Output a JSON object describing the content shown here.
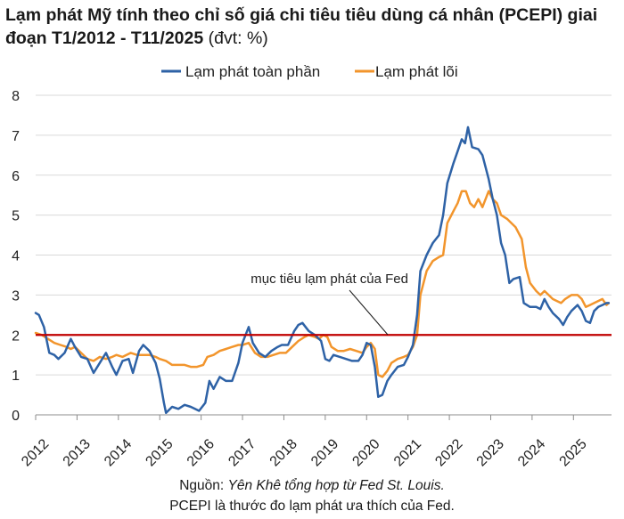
{
  "title": {
    "main": "Lạm phát Mỹ tính theo chỉ số giá chi tiêu tiêu dùng cá nhân (PCEPI) giai đoạn T1/2012 - T11/2025",
    "unit": " (đvt: %)"
  },
  "legend": [
    {
      "label": "Lạm phát toàn phần",
      "color": "#2e62a6"
    },
    {
      "label": "Lạm phát lõi",
      "color": "#f2952c"
    }
  ],
  "annotation": "mục tiêu lạm phát của Fed",
  "footer": {
    "source_prefix": "Nguồn: ",
    "source_italic": "Yên Khê tổng hợp từ Fed St. Louis.",
    "note": "PCEPI là thước đo lạm phát ưa thích của Fed."
  },
  "chart_data": {
    "type": "line",
    "title": "Lạm phát Mỹ tính theo chỉ số giá chi tiêu tiêu dùng cá nhân (PCEPI) giai đoạn T1/2012 - T11/2025",
    "xlabel": "",
    "ylabel": "%",
    "ylim": [
      0,
      8
    ],
    "yticks": [
      "0",
      "1",
      "2",
      "3",
      "4",
      "5",
      "6",
      "7",
      "8"
    ],
    "xticks": [
      "2012",
      "2013",
      "2014",
      "2015",
      "2016",
      "2017",
      "2018",
      "2019",
      "2020",
      "2021",
      "2022",
      "2023",
      "2024",
      "2025"
    ],
    "reference_line": {
      "y": 2,
      "label": "mục tiêu lạm phát của Fed",
      "color": "#c00000"
    },
    "series": [
      {
        "name": "Lạm phát toàn phần",
        "color": "#2e62a6",
        "points": [
          [
            2012.0,
            2.55
          ],
          [
            2012.08,
            2.5
          ],
          [
            2012.2,
            2.2
          ],
          [
            2012.33,
            1.55
          ],
          [
            2012.45,
            1.5
          ],
          [
            2012.55,
            1.4
          ],
          [
            2012.7,
            1.55
          ],
          [
            2012.85,
            1.9
          ],
          [
            2012.95,
            1.7
          ],
          [
            2013.1,
            1.45
          ],
          [
            2013.25,
            1.4
          ],
          [
            2013.4,
            1.05
          ],
          [
            2013.55,
            1.3
          ],
          [
            2013.7,
            1.55
          ],
          [
            2013.85,
            1.2
          ],
          [
            2013.95,
            1.0
          ],
          [
            2014.1,
            1.35
          ],
          [
            2014.25,
            1.4
          ],
          [
            2014.35,
            1.05
          ],
          [
            2014.5,
            1.6
          ],
          [
            2014.6,
            1.75
          ],
          [
            2014.75,
            1.6
          ],
          [
            2014.9,
            1.3
          ],
          [
            2015.0,
            0.9
          ],
          [
            2015.1,
            0.3
          ],
          [
            2015.15,
            0.05
          ],
          [
            2015.3,
            0.2
          ],
          [
            2015.45,
            0.15
          ],
          [
            2015.6,
            0.25
          ],
          [
            2015.75,
            0.2
          ],
          [
            2015.85,
            0.15
          ],
          [
            2015.95,
            0.1
          ],
          [
            2016.1,
            0.3
          ],
          [
            2016.2,
            0.85
          ],
          [
            2016.3,
            0.65
          ],
          [
            2016.45,
            0.95
          ],
          [
            2016.6,
            0.85
          ],
          [
            2016.75,
            0.85
          ],
          [
            2016.9,
            1.3
          ],
          [
            2017.0,
            1.8
          ],
          [
            2017.15,
            2.2
          ],
          [
            2017.25,
            1.8
          ],
          [
            2017.4,
            1.55
          ],
          [
            2017.55,
            1.45
          ],
          [
            2017.7,
            1.6
          ],
          [
            2017.85,
            1.7
          ],
          [
            2017.95,
            1.75
          ],
          [
            2018.1,
            1.75
          ],
          [
            2018.25,
            2.1
          ],
          [
            2018.35,
            2.25
          ],
          [
            2018.45,
            2.3
          ],
          [
            2018.6,
            2.1
          ],
          [
            2018.75,
            2.0
          ],
          [
            2018.9,
            1.85
          ],
          [
            2019.0,
            1.4
          ],
          [
            2019.1,
            1.35
          ],
          [
            2019.2,
            1.5
          ],
          [
            2019.35,
            1.45
          ],
          [
            2019.5,
            1.4
          ],
          [
            2019.65,
            1.35
          ],
          [
            2019.8,
            1.35
          ],
          [
            2019.9,
            1.5
          ],
          [
            2020.0,
            1.8
          ],
          [
            2020.1,
            1.75
          ],
          [
            2020.2,
            1.2
          ],
          [
            2020.28,
            0.45
          ],
          [
            2020.38,
            0.5
          ],
          [
            2020.5,
            0.85
          ],
          [
            2020.6,
            1.0
          ],
          [
            2020.75,
            1.2
          ],
          [
            2020.9,
            1.25
          ],
          [
            2021.0,
            1.45
          ],
          [
            2021.12,
            1.75
          ],
          [
            2021.22,
            2.5
          ],
          [
            2021.3,
            3.6
          ],
          [
            2021.45,
            4.0
          ],
          [
            2021.6,
            4.3
          ],
          [
            2021.75,
            4.5
          ],
          [
            2021.85,
            5.0
          ],
          [
            2021.95,
            5.8
          ],
          [
            2022.1,
            6.3
          ],
          [
            2022.2,
            6.6
          ],
          [
            2022.3,
            6.9
          ],
          [
            2022.38,
            6.8
          ],
          [
            2022.45,
            7.2
          ],
          [
            2022.55,
            6.7
          ],
          [
            2022.7,
            6.65
          ],
          [
            2022.8,
            6.5
          ],
          [
            2022.95,
            5.9
          ],
          [
            2023.05,
            5.4
          ],
          [
            2023.15,
            5.0
          ],
          [
            2023.25,
            4.3
          ],
          [
            2023.35,
            4.0
          ],
          [
            2023.45,
            3.3
          ],
          [
            2023.55,
            3.4
          ],
          [
            2023.7,
            3.45
          ],
          [
            2023.8,
            2.8
          ],
          [
            2023.95,
            2.7
          ],
          [
            2024.1,
            2.7
          ],
          [
            2024.2,
            2.65
          ],
          [
            2024.3,
            2.9
          ],
          [
            2024.4,
            2.7
          ],
          [
            2024.5,
            2.55
          ],
          [
            2024.65,
            2.4
          ],
          [
            2024.75,
            2.25
          ],
          [
            2024.85,
            2.45
          ],
          [
            2024.95,
            2.6
          ],
          [
            2025.1,
            2.75
          ],
          [
            2025.2,
            2.6
          ],
          [
            2025.3,
            2.35
          ],
          [
            2025.4,
            2.3
          ],
          [
            2025.5,
            2.6
          ],
          [
            2025.6,
            2.7
          ],
          [
            2025.7,
            2.75
          ],
          [
            2025.8,
            2.8
          ],
          [
            2025.85,
            2.8
          ]
        ]
      },
      {
        "name": "Lạm phát lõi",
        "color": "#f2952c",
        "points": [
          [
            2012.0,
            2.05
          ],
          [
            2012.15,
            2.0
          ],
          [
            2012.3,
            1.9
          ],
          [
            2012.45,
            1.8
          ],
          [
            2012.6,
            1.75
          ],
          [
            2012.75,
            1.7
          ],
          [
            2012.85,
            1.65
          ],
          [
            2012.95,
            1.7
          ],
          [
            2013.1,
            1.55
          ],
          [
            2013.25,
            1.4
          ],
          [
            2013.4,
            1.35
          ],
          [
            2013.55,
            1.45
          ],
          [
            2013.7,
            1.4
          ],
          [
            2013.85,
            1.45
          ],
          [
            2013.95,
            1.5
          ],
          [
            2014.1,
            1.45
          ],
          [
            2014.3,
            1.55
          ],
          [
            2014.45,
            1.5
          ],
          [
            2014.6,
            1.5
          ],
          [
            2014.75,
            1.5
          ],
          [
            2014.9,
            1.45
          ],
          [
            2015.0,
            1.4
          ],
          [
            2015.15,
            1.35
          ],
          [
            2015.3,
            1.25
          ],
          [
            2015.45,
            1.25
          ],
          [
            2015.6,
            1.25
          ],
          [
            2015.75,
            1.2
          ],
          [
            2015.9,
            1.2
          ],
          [
            2016.05,
            1.25
          ],
          [
            2016.15,
            1.45
          ],
          [
            2016.3,
            1.5
          ],
          [
            2016.45,
            1.6
          ],
          [
            2016.6,
            1.65
          ],
          [
            2016.75,
            1.7
          ],
          [
            2016.9,
            1.75
          ],
          [
            2017.0,
            1.75
          ],
          [
            2017.15,
            1.8
          ],
          [
            2017.3,
            1.55
          ],
          [
            2017.45,
            1.45
          ],
          [
            2017.6,
            1.45
          ],
          [
            2017.75,
            1.5
          ],
          [
            2017.9,
            1.55
          ],
          [
            2018.05,
            1.55
          ],
          [
            2018.2,
            1.7
          ],
          [
            2018.35,
            1.85
          ],
          [
            2018.5,
            1.95
          ],
          [
            2018.6,
            2.0
          ],
          [
            2018.75,
            1.95
          ],
          [
            2018.85,
            1.9
          ],
          [
            2018.95,
            2.0
          ],
          [
            2019.05,
            1.95
          ],
          [
            2019.15,
            1.7
          ],
          [
            2019.3,
            1.6
          ],
          [
            2019.45,
            1.6
          ],
          [
            2019.6,
            1.65
          ],
          [
            2019.75,
            1.6
          ],
          [
            2019.9,
            1.55
          ],
          [
            2020.0,
            1.7
          ],
          [
            2020.1,
            1.8
          ],
          [
            2020.2,
            1.65
          ],
          [
            2020.28,
            1.0
          ],
          [
            2020.38,
            0.95
          ],
          [
            2020.5,
            1.1
          ],
          [
            2020.6,
            1.3
          ],
          [
            2020.75,
            1.4
          ],
          [
            2020.9,
            1.45
          ],
          [
            2021.0,
            1.5
          ],
          [
            2021.12,
            1.7
          ],
          [
            2021.22,
            2.0
          ],
          [
            2021.3,
            3.0
          ],
          [
            2021.45,
            3.6
          ],
          [
            2021.6,
            3.85
          ],
          [
            2021.75,
            3.95
          ],
          [
            2021.85,
            4.0
          ],
          [
            2021.95,
            4.8
          ],
          [
            2022.1,
            5.1
          ],
          [
            2022.2,
            5.3
          ],
          [
            2022.3,
            5.6
          ],
          [
            2022.4,
            5.6
          ],
          [
            2022.5,
            5.3
          ],
          [
            2022.6,
            5.2
          ],
          [
            2022.7,
            5.4
          ],
          [
            2022.8,
            5.2
          ],
          [
            2022.95,
            5.6
          ],
          [
            2023.05,
            5.4
          ],
          [
            2023.15,
            5.3
          ],
          [
            2023.25,
            5.0
          ],
          [
            2023.4,
            4.9
          ],
          [
            2023.5,
            4.8
          ],
          [
            2023.6,
            4.7
          ],
          [
            2023.75,
            4.4
          ],
          [
            2023.85,
            3.7
          ],
          [
            2023.95,
            3.3
          ],
          [
            2024.1,
            3.1
          ],
          [
            2024.2,
            3.0
          ],
          [
            2024.3,
            3.1
          ],
          [
            2024.4,
            3.0
          ],
          [
            2024.5,
            2.9
          ],
          [
            2024.6,
            2.85
          ],
          [
            2024.7,
            2.8
          ],
          [
            2024.8,
            2.9
          ],
          [
            2024.95,
            3.0
          ],
          [
            2025.1,
            3.0
          ],
          [
            2025.2,
            2.9
          ],
          [
            2025.3,
            2.7
          ],
          [
            2025.4,
            2.75
          ],
          [
            2025.5,
            2.8
          ],
          [
            2025.6,
            2.85
          ],
          [
            2025.7,
            2.9
          ],
          [
            2025.8,
            2.75
          ],
          [
            2025.85,
            2.8
          ]
        ]
      }
    ]
  }
}
